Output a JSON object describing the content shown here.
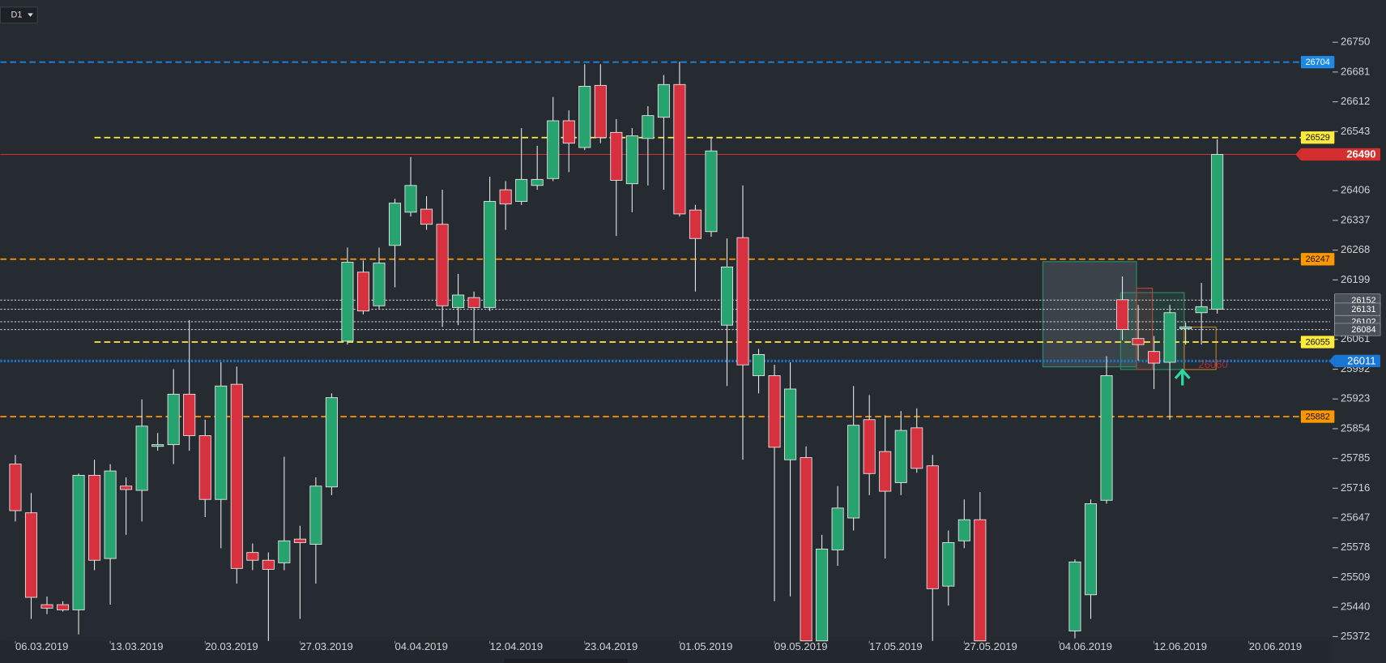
{
  "timeframe": "D1",
  "chart_data": {
    "type": "candlestick",
    "up_color": "#27a36f",
    "down_color": "#d7303f",
    "x": [
      0,
      1,
      2,
      3,
      4,
      5,
      6,
      7,
      8,
      9,
      10,
      11,
      12,
      13,
      14,
      15,
      16,
      17,
      18,
      19,
      20,
      21,
      22,
      23,
      24,
      25,
      26,
      27,
      28,
      29,
      30,
      31,
      32,
      33,
      34,
      35,
      36,
      37,
      38,
      39,
      40,
      41,
      42,
      43,
      44,
      45,
      46,
      47,
      48,
      49,
      50,
      51,
      52,
      53,
      54,
      55,
      56,
      57,
      58,
      59,
      60,
      61,
      67,
      68,
      69,
      70,
      71,
      72,
      73,
      74,
      75,
      76
    ],
    "open": [
      25772,
      25659,
      25446,
      25446,
      25434,
      25746,
      25553,
      25721,
      25711,
      25813,
      25817,
      25934,
      25838,
      25690,
      25957,
      25567,
      25549,
      25543,
      25598,
      25586,
      25719,
      26057,
      26217,
      26139,
      26279,
      26356,
      26363,
      26328,
      26135,
      26158,
      26135,
      26408,
      26381,
      26418,
      26434,
      26568,
      26506,
      26650,
      26541,
      26422,
      26527,
      26576,
      26652,
      26361,
      26311,
      26094,
      26297,
      25977,
      25977,
      25782,
      25787,
      25362,
      25573,
      25647,
      25875,
      25801,
      25729,
      25856,
      25768,
      25489,
      25594,
      25643,
      25385,
      25469,
      25688,
      26153,
      26063,
      26033,
      26008,
      26086,
      26123,
      26131
    ],
    "high": [
      25793,
      25705,
      25465,
      25454,
      25750,
      25782,
      25772,
      25741,
      25922,
      25844,
      25992,
      26106,
      25875,
      26008,
      25998,
      25588,
      25567,
      25789,
      25629,
      25741,
      25936,
      26274,
      26244,
      26274,
      26387,
      26484,
      26393,
      26408,
      26213,
      26172,
      26438,
      26428,
      26551,
      26510,
      26623,
      26592,
      26699,
      26699,
      26572,
      26551,
      26602,
      26674,
      26705,
      26373,
      26531,
      26295,
      26418,
      26039,
      26002,
      26008,
      25813,
      25608,
      25721,
      25953,
      25932,
      25885,
      25895,
      25901,
      25793,
      25618,
      25690,
      25707,
      25551,
      25690,
      26022,
      26207,
      26141,
      26069,
      26141,
      26100,
      26192,
      26525
    ],
    "low": [
      25639,
      25413,
      25424,
      25430,
      25377,
      25526,
      25446,
      25608,
      25639,
      25803,
      25772,
      25803,
      25649,
      25577,
      25495,
      25526,
      25362,
      25526,
      25413,
      25495,
      25700,
      26049,
      26119,
      26131,
      26182,
      26346,
      26315,
      26090,
      26094,
      26053,
      26127,
      26315,
      26373,
      26408,
      26428,
      26449,
      26500,
      26516,
      26301,
      26356,
      26418,
      26408,
      26346,
      26172,
      26299,
      25953,
      25782,
      25936,
      25454,
      25465,
      25362,
      25362,
      25536,
      25618,
      25700,
      25553,
      25700,
      25752,
      25362,
      25444,
      25577,
      25362,
      25368,
      25413,
      25680,
      26059,
      26012,
      25946,
      25875,
      26049,
      26049,
      26121
    ],
    "close": [
      25664,
      25463,
      25438,
      25434,
      25746,
      25549,
      25756,
      25713,
      25860,
      25817,
      25934,
      25838,
      25690,
      25953,
      25530,
      25549,
      25528,
      25594,
      25590,
      25721,
      25926,
      26240,
      26127,
      26238,
      26377,
      26418,
      26328,
      26139,
      26164,
      26135,
      26381,
      26375,
      26432,
      26432,
      26568,
      26516,
      26648,
      26529,
      26430,
      26533,
      26580,
      26652,
      26352,
      26295,
      26498,
      26229,
      26002,
      26026,
      25811,
      25946,
      25362,
      25575,
      25670,
      25862,
      25750,
      25709,
      25850,
      25762,
      25483,
      25590,
      25643,
      25362,
      25545,
      25680,
      25977,
      26084,
      26049,
      26006,
      26123,
      26090,
      26137,
      26490
    ],
    "xlim": [
      -0.95,
      83.13
    ],
    "ylim": [
      25362,
      26848
    ],
    "yticks": [
      26750,
      26681,
      26612,
      26543,
      26406,
      26337,
      26268,
      26199,
      26061,
      25992,
      25923,
      25854,
      25785,
      25716,
      25647,
      25578,
      25509,
      25440,
      25372
    ],
    "xticks": [
      {
        "value": 0,
        "label": "06.03.2019"
      },
      {
        "value": 6,
        "label": "13.03.2019"
      },
      {
        "value": 12,
        "label": "20.03.2019"
      },
      {
        "value": 18,
        "label": "27.03.2019"
      },
      {
        "value": 24,
        "label": "04.04.2019"
      },
      {
        "value": 30,
        "label": "12.04.2019"
      },
      {
        "value": 36,
        "label": "23.04.2019"
      },
      {
        "value": 42,
        "label": "01.05.2019"
      },
      {
        "value": 48,
        "label": "09.05.2019"
      },
      {
        "value": 54,
        "label": "17.05.2019"
      },
      {
        "value": 60,
        "label": "27.05.2019"
      },
      {
        "value": 66,
        "label": "04.06.2019"
      },
      {
        "value": 72,
        "label": "12.06.2019"
      },
      {
        "value": 78,
        "label": "20.06.2019"
      }
    ],
    "levels": [
      {
        "value": 26704,
        "color": "#1e88e5",
        "style": "dashed",
        "tag": "inner"
      },
      {
        "value": 26529,
        "color": "#ffeb3b",
        "style": "dashed",
        "tag": "inner",
        "from_x": 5
      },
      {
        "value": 26490,
        "color": "#d32f2f",
        "style": "solid",
        "tag": "axis"
      },
      {
        "value": 26247,
        "color": "#ff9800",
        "style": "dashed",
        "tag": "inner"
      },
      {
        "value": 26152,
        "color": "#c8ccd0",
        "style": "dotted",
        "tag": "axis"
      },
      {
        "value": 26131,
        "color": "#c8ccd0",
        "style": "dotted",
        "tag": "axis"
      },
      {
        "value": 26102,
        "color": "#c8ccd0",
        "style": "dotted",
        "tag": "axis"
      },
      {
        "value": 26084,
        "color": "#c8ccd0",
        "style": "dotted",
        "tag": "axis"
      },
      {
        "value": 26055,
        "color": "#ffeb3b",
        "style": "dashed",
        "tag": "inner",
        "from_x": 5
      },
      {
        "value": 26011,
        "color": "#1976d2",
        "style": "dotted",
        "tag": "axis"
      },
      {
        "value": 25882,
        "color": "#ff9800",
        "style": "dashed",
        "tag": "inner"
      }
    ],
    "annotation": "26060"
  }
}
